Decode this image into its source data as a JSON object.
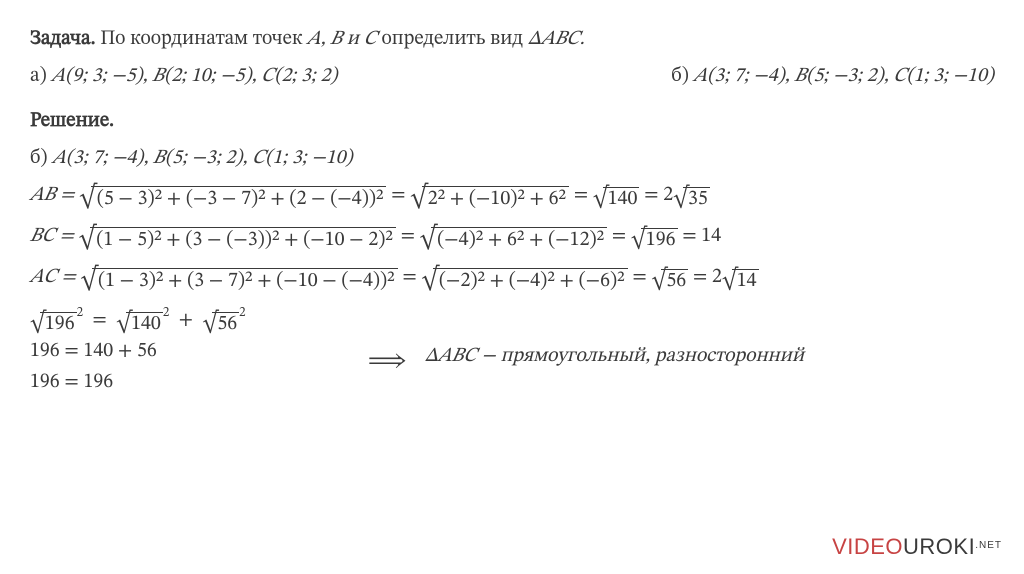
{
  "colors": {
    "text": "#3a3a3a",
    "background": "#ffffff",
    "watermark_accent": "#c74343"
  },
  "problem": {
    "label": "Задача.",
    "statement_before": " По координатам точек ",
    "points": "𝐴, 𝐵 и 𝐶",
    "statement_after": " определить вид ",
    "triangle": "Δ𝐴𝐵𝐶.",
    "case_a_label": "а) ",
    "case_a_points": "𝐴(9; 3; −5), 𝐵(2; 10; −5), 𝐶(2; 3; 2)",
    "case_b_label": "б) ",
    "case_b_points": "𝐴(3; 7; −4), 𝐵(5; −3; 2), 𝐶(1; 3; −10)"
  },
  "solution": {
    "title": "Решение.",
    "case_line_label": "б) ",
    "case_line_points": "𝐴(3; 7; −4), 𝐵(5; −3; 2), 𝐶(1; 3; −10)",
    "ab": {
      "label": "𝐴𝐵 = ",
      "rad1": "(5 − 3)² + (−3 − 7)² + (2 − (−4))²",
      "mid": "= ",
      "rad2": "2² + (−10)² + 6²",
      "eq1": " = ",
      "rad3": "140",
      "eq2": " = 2",
      "rad4": "35"
    },
    "bc": {
      "label": "𝐵𝐶 = ",
      "rad1": "(1 − 5)² + (3 − (−3))² + (−10 − 2)²",
      "mid": "= ",
      "rad2": "(−4)² + 6² + (−12)²",
      "eq1": "= ",
      "rad3": "196",
      "eq2": " = 14"
    },
    "ac": {
      "label": "𝐴𝐶 = ",
      "rad1": "(1 − 3)² + (3 − 7)² + (−10 − (−4))²",
      "mid": "= ",
      "rad2": "(−2)² + (−4)² + (−6)²",
      "eq1": "= ",
      "rad3": "56",
      "eq2": " = 2",
      "rad4": "14"
    },
    "pyth_r1_a": "196",
    "pyth_r1_b": "140",
    "pyth_r1_c": "56",
    "pyth_line2": "196 = 140 + 56",
    "pyth_line3": "196 = 196",
    "arrow": "⟹",
    "conclusion": "Δ𝐴𝐵𝐶 − прямоугольный, разносторонний"
  },
  "watermark": {
    "p1": "VIDEO",
    "p2": "UROKI",
    "p3": ".NET"
  }
}
